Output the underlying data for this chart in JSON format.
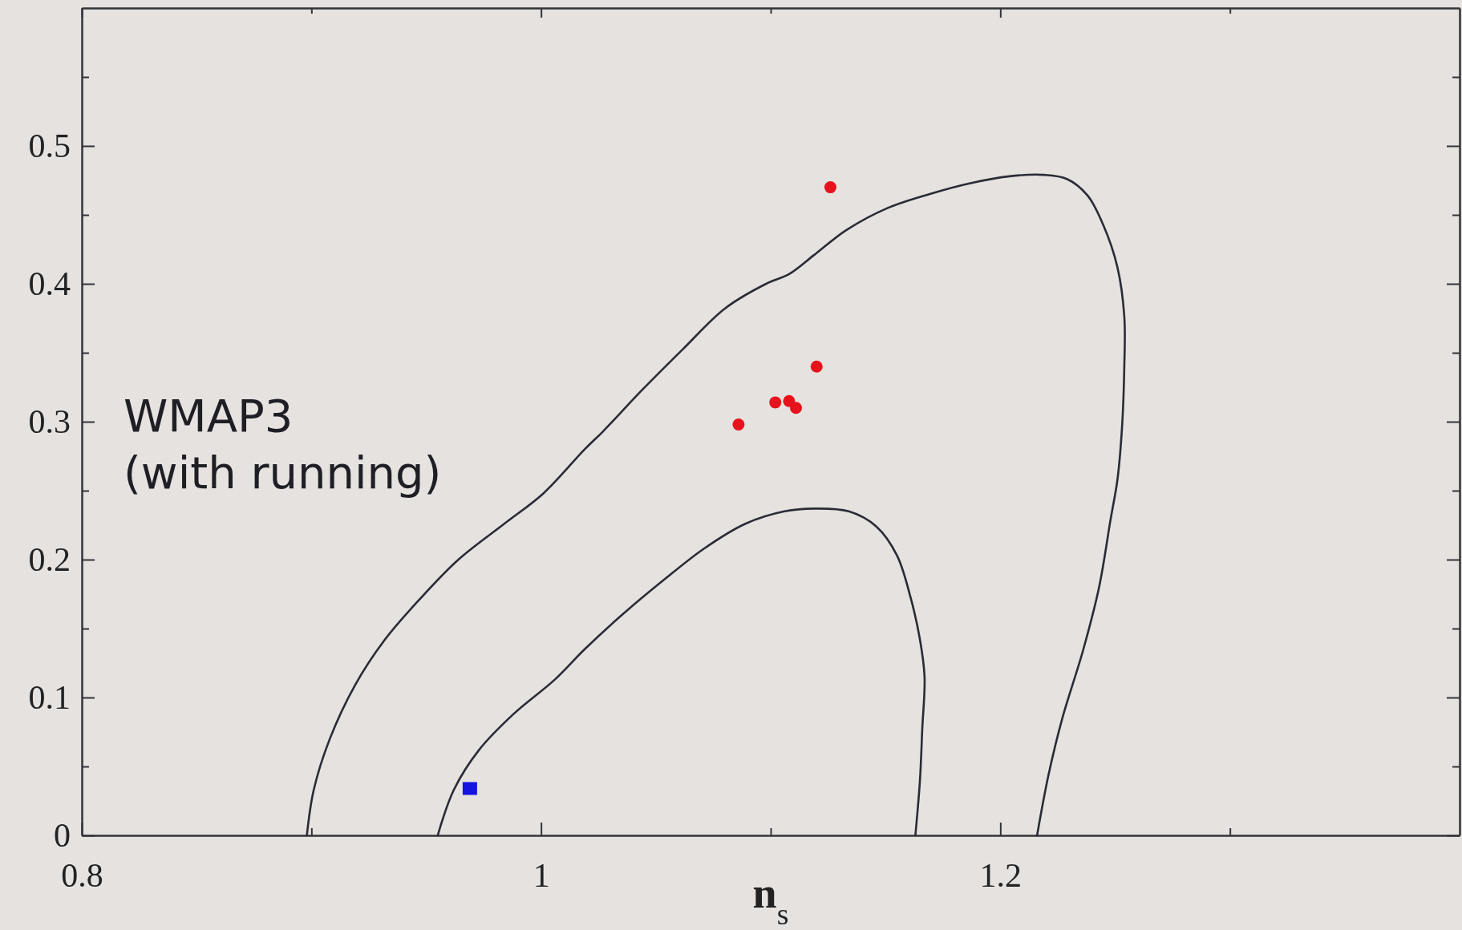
{
  "chart_data": {
    "type": "scatter",
    "xlabel": "n$_{s}$",
    "annotations": [
      "WMAP3\n(with running)"
    ],
    "xlim": [
      0.8,
      1.4
    ],
    "ylim": [
      0,
      0.6
    ],
    "xticks": [
      0.8,
      {
        "value": 0.9,
        "label": null
      },
      1,
      {
        "value": 1.1,
        "label": null
      },
      1.2,
      {
        "value": 1.3,
        "label": null
      }
    ],
    "yticks": [
      0,
      {
        "value": 0.05,
        "label": null
      },
      0.1,
      {
        "value": 0.15,
        "label": null
      },
      0.2,
      {
        "value": 0.25,
        "label": null
      },
      0.3,
      {
        "value": 0.35,
        "label": null
      },
      0.4,
      {
        "value": 0.45,
        "label": null
      },
      0.5,
      {
        "value": 0.55,
        "label": null
      }
    ],
    "series": [
      {
        "type": "line",
        "color": "#2b2b36",
        "marker": "none",
        "x": [
          0.898,
          0.901,
          0.908,
          0.919,
          0.932,
          0.947,
          0.964,
          0.984,
          1.001,
          1.019,
          1.027,
          1.044,
          1.062,
          1.08,
          1.098,
          1.108,
          1.119,
          1.133,
          1.151,
          1.169,
          1.187,
          1.204,
          1.219,
          1.229,
          1.238,
          1.245,
          1.251,
          1.254,
          1.254,
          1.253,
          1.251,
          1.248,
          1.243,
          1.236,
          1.227,
          1.221,
          1.216
        ],
        "values": [
          0,
          0.033,
          0.07,
          0.109,
          0.142,
          0.171,
          0.2,
          0.226,
          0.248,
          0.28,
          0.293,
          0.323,
          0.353,
          0.382,
          0.4,
          0.407,
          0.421,
          0.439,
          0.455,
          0.465,
          0.473,
          0.478,
          0.479,
          0.476,
          0.464,
          0.442,
          0.412,
          0.376,
          0.341,
          0.296,
          0.258,
          0.229,
          0.18,
          0.134,
          0.085,
          0.044,
          0
        ]
      },
      {
        "type": "line",
        "color": "#2b2b36",
        "marker": "none",
        "x": [
          0.955,
          0.962,
          0.973,
          0.988,
          1.006,
          1.019,
          1.036,
          1.054,
          1.071,
          1.089,
          1.106,
          1.119,
          1.134,
          1.146,
          1.155,
          1.161,
          1.165,
          1.167,
          1.166,
          1.165,
          1.163
        ],
        "values": [
          0,
          0.033,
          0.062,
          0.088,
          0.113,
          0.135,
          0.161,
          0.186,
          0.208,
          0.226,
          0.235,
          0.237,
          0.235,
          0.224,
          0.203,
          0.172,
          0.142,
          0.115,
          0.077,
          0.04,
          0
        ]
      },
      {
        "color": "#e8121c",
        "marker": "circle",
        "x": [
          1.086,
          1.102,
          1.108,
          1.111,
          1.12,
          1.126
        ],
        "values": [
          0.298,
          0.314,
          0.315,
          0.31,
          0.34,
          0.47
        ]
      },
      {
        "color": "#1414e0",
        "marker": "square",
        "x": [
          0.969
        ],
        "values": [
          0.034
        ]
      }
    ]
  }
}
